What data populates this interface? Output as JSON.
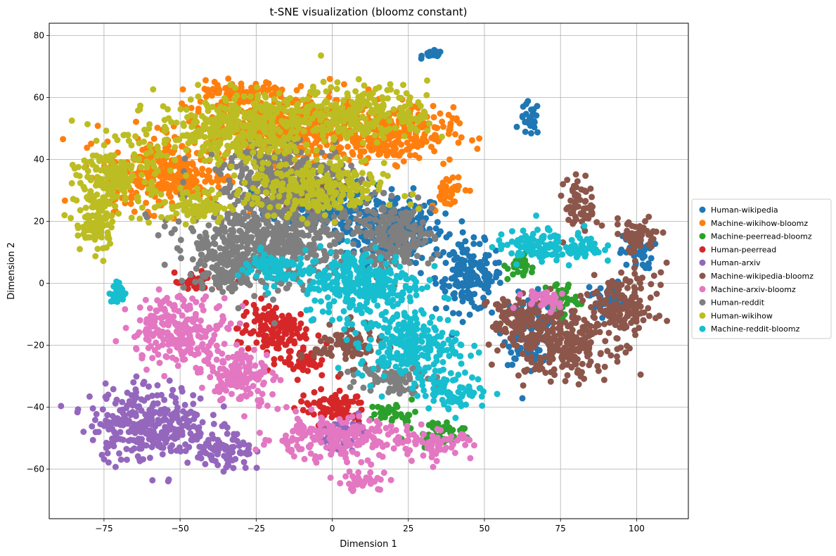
{
  "chart_data": {
    "type": "scatter",
    "title": "t-SNE visualization (bloomz constant)",
    "xlabel": "Dimension 1",
    "ylabel": "Dimension 2",
    "xlim": [
      -93,
      117
    ],
    "ylim": [
      -76,
      84
    ],
    "xticks": [
      -75,
      -50,
      -25,
      0,
      25,
      50,
      75,
      100
    ],
    "yticks": [
      -60,
      -40,
      -20,
      0,
      20,
      40,
      60,
      80
    ],
    "xtick_labels": [
      "−75",
      "−50",
      "−25",
      "0",
      "25",
      "50",
      "75",
      "100"
    ],
    "ytick_labels": [
      "−60",
      "−40",
      "−20",
      "0",
      "20",
      "40",
      "60",
      "80"
    ],
    "grid": true,
    "legend_position": "center-right, outside plot",
    "series": [
      {
        "name": "Human-wikipedia",
        "color": "#1f77b4",
        "clusters": [
          [
            20,
            18,
            15,
            10
          ],
          [
            45,
            2,
            10,
            10
          ],
          [
            65,
            53,
            3,
            5
          ],
          [
            33,
            74,
            3,
            1
          ],
          [
            65,
            -15,
            8,
            10
          ],
          [
            -5,
            25,
            15,
            8
          ],
          [
            100,
            10,
            5,
            5
          ],
          [
            90,
            -5,
            5,
            5
          ]
        ]
      },
      {
        "name": "Machine-wikihow-bloomz",
        "color": "#ff7f0e",
        "clusters": [
          [
            -15,
            50,
            30,
            10
          ],
          [
            20,
            48,
            18,
            8
          ],
          [
            -55,
            35,
            18,
            10
          ],
          [
            -30,
            62,
            15,
            3
          ],
          [
            38,
            30,
            5,
            5
          ]
        ]
      },
      {
        "name": "Machine-peerread-bloomz",
        "color": "#2ca02c",
        "clusters": [
          [
            35,
            -48,
            8,
            3
          ],
          [
            20,
            -42,
            7,
            3
          ],
          [
            62,
            5,
            4,
            4
          ],
          [
            75,
            -5,
            5,
            5
          ]
        ]
      },
      {
        "name": "Human-peerread",
        "color": "#d62728",
        "clusters": [
          [
            -20,
            -15,
            10,
            8
          ],
          [
            0,
            -40,
            10,
            5
          ],
          [
            -45,
            0,
            6,
            3
          ],
          [
            -10,
            -25,
            5,
            5
          ]
        ]
      },
      {
        "name": "Human-arxiv",
        "color": "#9467bd",
        "clusters": [
          [
            -60,
            -45,
            18,
            11
          ],
          [
            -35,
            -55,
            8,
            6
          ],
          [
            5,
            -48,
            8,
            4
          ]
        ]
      },
      {
        "name": "Machine-wikipedia-bloomz",
        "color": "#8c564b",
        "clusters": [
          [
            75,
            -20,
            15,
            10
          ],
          [
            95,
            -8,
            10,
            10
          ],
          [
            100,
            15,
            7,
            5
          ],
          [
            82,
            25,
            5,
            8
          ],
          [
            5,
            -20,
            10,
            6
          ],
          [
            60,
            -12,
            8,
            8
          ],
          [
            -10,
            30,
            10,
            5
          ]
        ]
      },
      {
        "name": "Machine-arxiv-bloomz",
        "color": "#e377c2",
        "clusters": [
          [
            -50,
            -15,
            15,
            10
          ],
          [
            -30,
            -30,
            10,
            8
          ],
          [
            0,
            -50,
            22,
            6
          ],
          [
            35,
            -52,
            10,
            4
          ],
          [
            10,
            -64,
            8,
            3
          ],
          [
            70,
            -5,
            8,
            3
          ]
        ]
      },
      {
        "name": "Human-reddit",
        "color": "#7f7f7f",
        "clusters": [
          [
            -20,
            15,
            25,
            15
          ],
          [
            -15,
            35,
            20,
            8
          ],
          [
            20,
            15,
            12,
            10
          ],
          [
            20,
            -30,
            10,
            5
          ],
          [
            -35,
            5,
            10,
            8
          ]
        ]
      },
      {
        "name": "Human-wikihow",
        "color": "#bcbd22",
        "clusters": [
          [
            -70,
            35,
            12,
            10
          ],
          [
            -78,
            20,
            6,
            10
          ],
          [
            -30,
            50,
            25,
            10
          ],
          [
            10,
            55,
            20,
            8
          ],
          [
            -5,
            30,
            20,
            8
          ],
          [
            -45,
            25,
            10,
            5
          ]
        ]
      },
      {
        "name": "Machine-reddit-bloomz",
        "color": "#17becf",
        "clusters": [
          [
            10,
            0,
            18,
            10
          ],
          [
            25,
            -20,
            15,
            10
          ],
          [
            -20,
            5,
            10,
            5
          ],
          [
            65,
            12,
            10,
            5
          ],
          [
            80,
            12,
            8,
            5
          ],
          [
            40,
            -35,
            10,
            5
          ],
          [
            -70,
            -3,
            3,
            3
          ]
        ]
      }
    ]
  }
}
